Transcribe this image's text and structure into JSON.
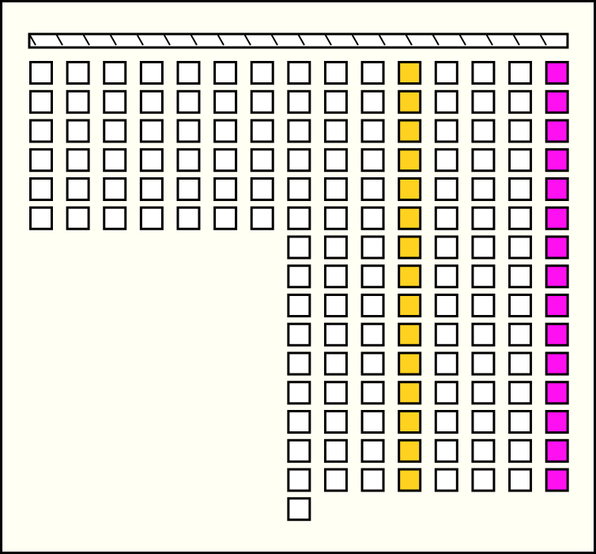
{
  "columns": [
    {
      "count": 6,
      "color": "#ffffff"
    },
    {
      "count": 6,
      "color": "#ffffff"
    },
    {
      "count": 6,
      "color": "#ffffff"
    },
    {
      "count": 6,
      "color": "#ffffff"
    },
    {
      "count": 6,
      "color": "#ffffff"
    },
    {
      "count": 6,
      "color": "#ffffff"
    },
    {
      "count": 6,
      "color": "#ffffff"
    },
    {
      "count": 16,
      "color": "#ffffff"
    },
    {
      "count": 15,
      "color": "#ffffff"
    },
    {
      "count": 15,
      "color": "#ffffff"
    },
    {
      "count": 15,
      "color": "#ffd21f"
    },
    {
      "count": 15,
      "color": "#ffffff"
    },
    {
      "count": 15,
      "color": "#ffffff"
    },
    {
      "count": 15,
      "color": "#ffffff"
    },
    {
      "count": 15,
      "color": "#ff10f0"
    }
  ]
}
